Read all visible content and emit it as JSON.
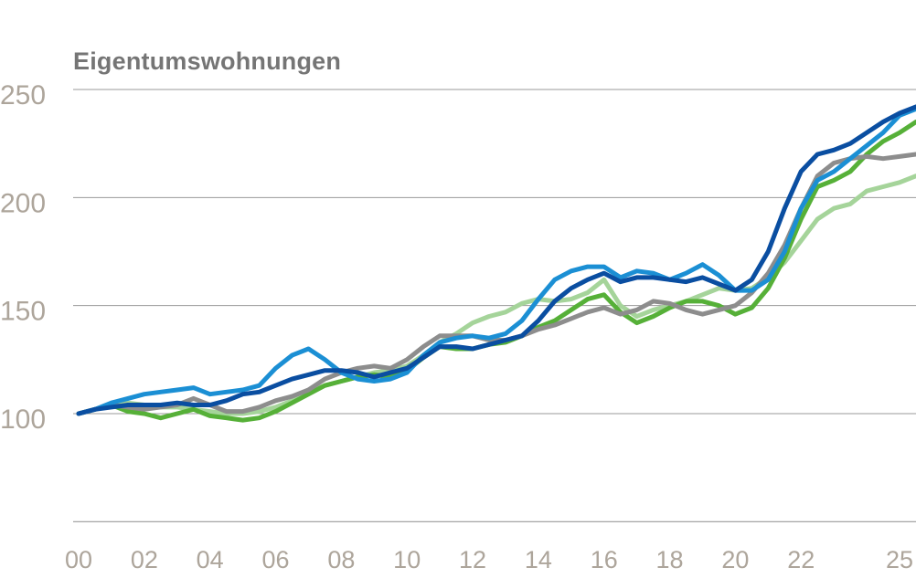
{
  "chart_data": {
    "type": "line",
    "title": "Eigentumswohnungen",
    "xlabel": "",
    "ylabel": "",
    "ylim": [
      50,
      250
    ],
    "xlim": [
      2000,
      2025.6
    ],
    "yticks": [
      100,
      150,
      200,
      250
    ],
    "ytick_labels": [
      "100",
      "150",
      "200",
      "250"
    ],
    "xticks": [
      2000,
      2002,
      2004,
      2006,
      2008,
      2010,
      2012,
      2014,
      2016,
      2018,
      2020,
      2022,
      2025
    ],
    "xtick_labels": [
      "00",
      "02",
      "04",
      "06",
      "08",
      "10",
      "12",
      "14",
      "16",
      "18",
      "20",
      "22",
      "25"
    ],
    "grid": true,
    "series": [
      {
        "name": "light-green",
        "color": "#a5d49a",
        "x": [
          2000,
          2000.5,
          2001,
          2001.5,
          2002,
          2002.5,
          2003,
          2003.5,
          2004,
          2004.5,
          2005,
          2005.5,
          2006,
          2006.5,
          2007,
          2007.5,
          2008,
          2008.5,
          2009,
          2009.5,
          2010,
          2010.5,
          2011,
          2011.5,
          2012,
          2012.5,
          2013,
          2013.5,
          2014,
          2014.5,
          2015,
          2015.5,
          2016,
          2016.5,
          2017,
          2017.5,
          2018,
          2018.5,
          2019,
          2019.5,
          2020,
          2020.5,
          2021,
          2021.5,
          2022,
          2022.5,
          2023,
          2023.5,
          2024,
          2024.5,
          2025,
          2025.5
        ],
        "values": [
          100,
          102,
          104,
          105,
          104,
          103,
          103,
          102,
          101,
          100,
          100,
          101,
          103,
          106,
          110,
          113,
          115,
          117,
          119,
          120,
          122,
          127,
          133,
          137,
          142,
          145,
          147,
          151,
          153,
          152,
          153,
          156,
          162,
          150,
          145,
          148,
          150,
          152,
          155,
          158,
          157,
          158,
          163,
          170,
          180,
          190,
          195,
          197,
          203,
          205,
          207,
          210
        ]
      },
      {
        "name": "green",
        "color": "#56b038",
        "x": [
          2000,
          2000.5,
          2001,
          2001.5,
          2002,
          2002.5,
          2003,
          2003.5,
          2004,
          2004.5,
          2005,
          2005.5,
          2006,
          2006.5,
          2007,
          2007.5,
          2008,
          2008.5,
          2009,
          2009.5,
          2010,
          2010.5,
          2011,
          2011.5,
          2012,
          2012.5,
          2013,
          2013.5,
          2014,
          2014.5,
          2015,
          2015.5,
          2016,
          2016.5,
          2017,
          2017.5,
          2018,
          2018.5,
          2019,
          2019.5,
          2020,
          2020.5,
          2021,
          2021.5,
          2022,
          2022.5,
          2023,
          2023.5,
          2024,
          2024.5,
          2025,
          2025.5
        ],
        "values": [
          100,
          102,
          104,
          101,
          100,
          98,
          100,
          102,
          99,
          98,
          97,
          98,
          101,
          105,
          109,
          113,
          115,
          117,
          118,
          117,
          120,
          126,
          131,
          130,
          130,
          132,
          133,
          136,
          140,
          143,
          148,
          153,
          155,
          147,
          142,
          145,
          149,
          152,
          152,
          150,
          146,
          149,
          158,
          172,
          190,
          205,
          208,
          212,
          220,
          226,
          230,
          235
        ]
      },
      {
        "name": "gray",
        "color": "#8d8d8d",
        "x": [
          2000,
          2000.5,
          2001,
          2001.5,
          2002,
          2002.5,
          2003,
          2003.5,
          2004,
          2004.5,
          2005,
          2005.5,
          2006,
          2006.5,
          2007,
          2007.5,
          2008,
          2008.5,
          2009,
          2009.5,
          2010,
          2010.5,
          2011,
          2011.5,
          2012,
          2012.5,
          2013,
          2013.5,
          2014,
          2014.5,
          2015,
          2015.5,
          2016,
          2016.5,
          2017,
          2017.5,
          2018,
          2018.5,
          2019,
          2019.5,
          2020,
          2020.5,
          2021,
          2021.5,
          2022,
          2022.5,
          2023,
          2023.5,
          2024,
          2024.5,
          2025,
          2025.5
        ],
        "values": [
          100,
          102,
          104,
          103,
          102,
          103,
          104,
          107,
          104,
          101,
          101,
          103,
          106,
          108,
          111,
          116,
          119,
          121,
          122,
          121,
          125,
          131,
          136,
          136,
          136,
          134,
          134,
          136,
          139,
          141,
          144,
          147,
          149,
          146,
          148,
          152,
          151,
          148,
          146,
          148,
          150,
          156,
          165,
          178,
          195,
          210,
          216,
          218,
          219,
          218,
          219,
          220
        ]
      },
      {
        "name": "light-blue",
        "color": "#1b8fd4",
        "x": [
          2000,
          2000.5,
          2001,
          2001.5,
          2002,
          2002.5,
          2003,
          2003.5,
          2004,
          2004.5,
          2005,
          2005.5,
          2006,
          2006.5,
          2007,
          2007.5,
          2008,
          2008.5,
          2009,
          2009.5,
          2010,
          2010.5,
          2011,
          2011.5,
          2012,
          2012.5,
          2013,
          2013.5,
          2014,
          2014.5,
          2015,
          2015.5,
          2016,
          2016.5,
          2017,
          2017.5,
          2018,
          2018.5,
          2019,
          2019.5,
          2020,
          2020.5,
          2021,
          2021.5,
          2022,
          2022.5,
          2023,
          2023.5,
          2024,
          2024.5,
          2025,
          2025.5
        ],
        "values": [
          100,
          102,
          105,
          107,
          109,
          110,
          111,
          112,
          109,
          110,
          111,
          113,
          121,
          127,
          130,
          125,
          119,
          116,
          115,
          116,
          119,
          127,
          133,
          135,
          136,
          135,
          137,
          143,
          153,
          162,
          166,
          168,
          168,
          163,
          166,
          165,
          162,
          165,
          169,
          164,
          157,
          157,
          162,
          175,
          195,
          208,
          212,
          218,
          224,
          230,
          238,
          241
        ]
      },
      {
        "name": "dark-blue",
        "color": "#0a4ea1",
        "x": [
          2000,
          2000.5,
          2001,
          2001.5,
          2002,
          2002.5,
          2003,
          2003.5,
          2004,
          2004.5,
          2005,
          2005.5,
          2006,
          2006.5,
          2007,
          2007.5,
          2008,
          2008.5,
          2009,
          2009.5,
          2010,
          2010.5,
          2011,
          2011.5,
          2012,
          2012.5,
          2013,
          2013.5,
          2014,
          2014.5,
          2015,
          2015.5,
          2016,
          2016.5,
          2017,
          2017.5,
          2018,
          2018.5,
          2019,
          2019.5,
          2020,
          2020.5,
          2021,
          2021.5,
          2022,
          2022.5,
          2023,
          2023.5,
          2024,
          2024.5,
          2025,
          2025.5
        ],
        "values": [
          100,
          102,
          103,
          104,
          104,
          104,
          105,
          104,
          104,
          106,
          109,
          110,
          113,
          116,
          118,
          120,
          120,
          119,
          117,
          119,
          121,
          126,
          131,
          131,
          130,
          132,
          134,
          136,
          143,
          152,
          158,
          162,
          165,
          161,
          163,
          163,
          162,
          161,
          163,
          160,
          157,
          162,
          175,
          195,
          212,
          220,
          222,
          225,
          230,
          235,
          239,
          242
        ]
      }
    ]
  }
}
